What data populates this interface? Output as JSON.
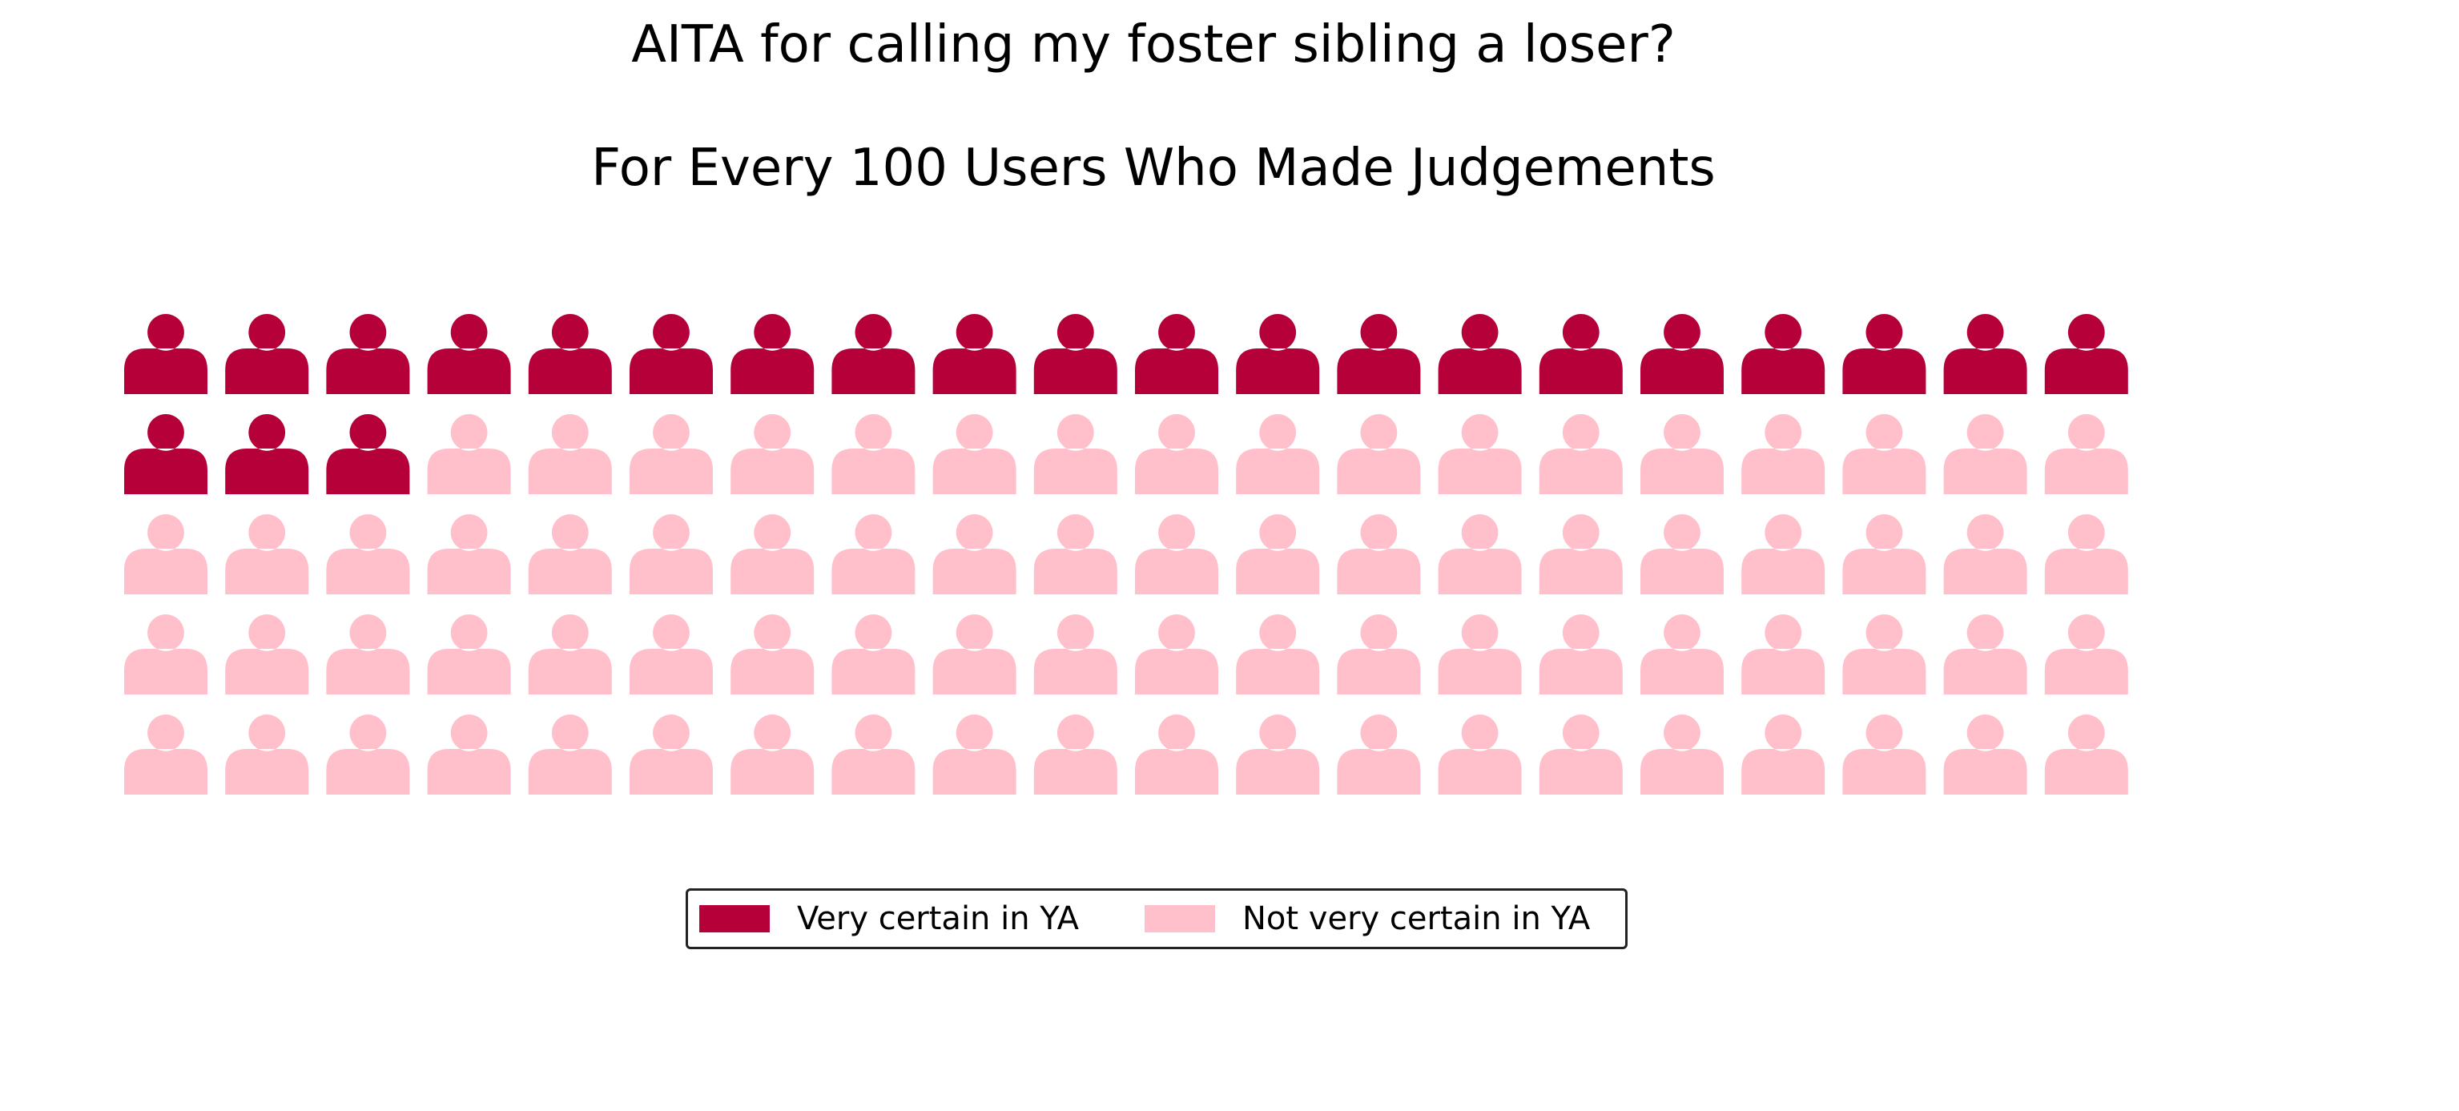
{
  "chart_data": {
    "type": "waffle",
    "title": "AITA for calling my foster sibling a loser?",
    "subtitle": "For Every 100 Users Who Made Judgements",
    "icon": "person-icon",
    "rows": 5,
    "columns": 20,
    "series": [
      {
        "name": "Very certain in YA",
        "value": 23,
        "color": "#b5003a"
      },
      {
        "name": "Not very certain in YA",
        "value": 77,
        "color": "#ffc0cb"
      }
    ],
    "legend": {
      "placement": "bottom-center",
      "entries": [
        "Very certain in YA",
        "Not very certain in YA"
      ]
    }
  }
}
